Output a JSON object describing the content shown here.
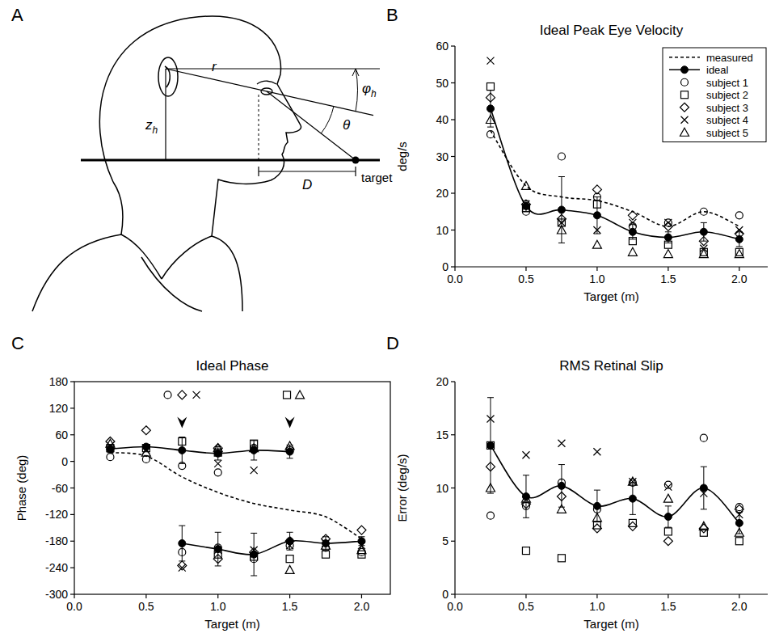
{
  "diagram": {
    "panel_label": "A",
    "height_label": {
      "text": "z",
      "subscript": "h"
    },
    "distance_label": "r",
    "elevation_label": {
      "text": "φ",
      "subscript": "h"
    },
    "angle_label": "θ",
    "target_distance_label": "D",
    "target_label": "target"
  },
  "chart_data": [
    {
      "panel_label": "B",
      "type": "line",
      "title": "Ideal Peak Eye Velocity",
      "xlabel": "Target (m)",
      "ylabel": "deg/s",
      "x": [
        0.25,
        0.5,
        0.75,
        1.0,
        1.25,
        1.5,
        1.75,
        2.0
      ],
      "xlim": [
        0,
        2.2
      ],
      "xticks": [
        {
          "value": 0,
          "label": "0.0"
        },
        {
          "value": 0.5,
          "label": "0.5"
        },
        {
          "value": 1,
          "label": "1.0"
        },
        {
          "value": 1.5,
          "label": "1.5"
        },
        {
          "value": 2,
          "label": "2.0"
        }
      ],
      "ylim": [
        0,
        60
      ],
      "yticks": [
        0,
        10,
        20,
        30,
        40,
        50,
        60
      ],
      "legend": "upper right",
      "series": [
        {
          "name": "measured",
          "type": "line",
          "line_style": "dashed",
          "color": "#000000",
          "values": [
            37,
            22,
            19,
            18,
            15,
            11,
            15,
            11
          ]
        },
        {
          "name": "ideal",
          "type": "line",
          "marker": "dot",
          "color": "#000000",
          "values": [
            43,
            16.5,
            15.5,
            14,
            9.5,
            8,
            9.5,
            7.5
          ],
          "errors": [
            5,
            1.5,
            9,
            5,
            2,
            1.5,
            2.5,
            2
          ]
        },
        {
          "name": "subject 1",
          "type": "scatter",
          "marker": "circle",
          "color": "#000000",
          "values": [
            36,
            15,
            30,
            19,
            11,
            12,
            15,
            14
          ]
        },
        {
          "name": "subject 2",
          "type": "scatter",
          "marker": "square",
          "color": "#000000",
          "values": [
            49,
            16,
            12,
            17,
            7,
            6,
            4,
            4
          ]
        },
        {
          "name": "subject 3",
          "type": "scatter",
          "marker": "diamond",
          "color": "#000000",
          "values": [
            46,
            17,
            13,
            21,
            14,
            11,
            7,
            9
          ]
        },
        {
          "name": "subject 4",
          "type": "scatter",
          "marker": "x",
          "color": "#000000",
          "values": [
            56,
            17,
            12,
            10,
            12,
            12,
            5,
            10
          ]
        },
        {
          "name": "subject 5",
          "type": "scatter",
          "marker": "triangle",
          "color": "#000000",
          "values": [
            40,
            22,
            10,
            6,
            4,
            3.5,
            3.5,
            3.5
          ]
        }
      ]
    },
    {
      "panel_label": "C",
      "type": "line",
      "title": "Ideal Phase",
      "xlabel": "Target (m)",
      "ylabel": "Phase (deg)",
      "x": [
        0.25,
        0.5,
        0.75,
        1.0,
        1.25,
        1.5,
        1.75,
        2.0
      ],
      "xlim": [
        0,
        2.2
      ],
      "xticks": [
        {
          "value": 0,
          "label": "0.0"
        },
        {
          "value": 0.5,
          "label": "0.5"
        },
        {
          "value": 1,
          "label": "1.0"
        },
        {
          "value": 1.5,
          "label": "1.5"
        },
        {
          "value": 2,
          "label": "2.0"
        }
      ],
      "ylim": [
        -300,
        180
      ],
      "yticks": [
        -300,
        -240,
        -180,
        -120,
        -60,
        0,
        60,
        120,
        180
      ],
      "arrows": [
        {
          "x": 0.75,
          "y": 75
        },
        {
          "x": 1.5,
          "y": 75
        }
      ],
      "series": [
        {
          "name": "measured",
          "type": "line",
          "line_style": "dashed",
          "color": "#000000",
          "values": [
            20,
            12,
            -35,
            -70,
            -95,
            -110,
            -125,
            -175
          ]
        },
        {
          "name": "ideal",
          "type": "line",
          "marker": "dot",
          "color": "#000000",
          "values": [
            28,
            33,
            25,
            18,
            25,
            22,
            null,
            null
          ],
          "errors": [
            8,
            5,
            30,
            15,
            22,
            15,
            null,
            null
          ]
        },
        {
          "name": "ideal",
          "type": "line",
          "marker": "dot",
          "color": "#000000",
          "values": [
            null,
            null,
            -185,
            -198,
            -210,
            -180,
            -185,
            -180
          ],
          "errors": [
            null,
            null,
            40,
            38,
            48,
            20,
            15,
            10
          ]
        },
        {
          "name": "subject 1",
          "type": "scatter",
          "marker": "circle",
          "color": "#000000",
          "x": [
            0.25,
            0.5,
            0.65,
            0.75,
            0.75,
            1.0,
            1.0,
            1.25,
            1.25,
            1.5,
            1.5,
            1.75,
            2.0
          ],
          "values": [
            10,
            5,
            150,
            -10,
            -205,
            -25,
            -195,
            30,
            -220,
            25,
            -190,
            -195,
            -205
          ]
        },
        {
          "name": "subject 2",
          "type": "scatter",
          "marker": "square",
          "color": "#000000",
          "x": [
            0.25,
            0.5,
            0.75,
            1.0,
            1.0,
            1.25,
            1.25,
            1.48,
            1.5,
            1.75,
            2.0
          ],
          "values": [
            30,
            30,
            45,
            20,
            -210,
            40,
            -215,
            150,
            -220,
            -210,
            -210
          ]
        },
        {
          "name": "subject 3",
          "type": "scatter",
          "marker": "diamond",
          "color": "#000000",
          "x": [
            0.25,
            0.5,
            0.75,
            0.75,
            1.0,
            1.0,
            1.25,
            1.5,
            1.75,
            2.0
          ],
          "values": [
            45,
            70,
            150,
            -235,
            30,
            -220,
            -205,
            -180,
            -175,
            -155
          ]
        },
        {
          "name": "subject 4",
          "type": "scatter",
          "marker": "x",
          "color": "#000000",
          "x": [
            0.25,
            0.5,
            0.75,
            0.85,
            1.0,
            1.0,
            1.25,
            1.25,
            1.5,
            1.75,
            2.0
          ],
          "values": [
            35,
            25,
            -240,
            150,
            -5,
            -200,
            -20,
            -200,
            -190,
            -185,
            -190
          ]
        },
        {
          "name": "subject 5",
          "type": "scatter",
          "marker": "triangle",
          "color": "#000000",
          "x": [
            0.25,
            0.5,
            1.0,
            1.25,
            1.5,
            1.5,
            1.57,
            1.75,
            2.0
          ],
          "values": [
            40,
            20,
            30,
            30,
            35,
            -245,
            150,
            -190,
            -200
          ]
        }
      ]
    },
    {
      "panel_label": "D",
      "type": "line",
      "title": "RMS Retinal Slip",
      "xlabel": "Target (m)",
      "ylabel": "Error (deg/s)",
      "x": [
        0.25,
        0.5,
        0.75,
        1.0,
        1.25,
        1.5,
        1.75,
        2.0
      ],
      "xlim": [
        0,
        2.2
      ],
      "xticks": [
        {
          "value": 0,
          "label": "0.0"
        },
        {
          "value": 0.5,
          "label": "0.5"
        },
        {
          "value": 1,
          "label": "1.0"
        },
        {
          "value": 1.5,
          "label": "1.5"
        },
        {
          "value": 2,
          "label": "2.0"
        }
      ],
      "ylim": [
        0,
        20
      ],
      "yticks": [
        0,
        5,
        10,
        15,
        20
      ],
      "series": [
        {
          "name": "ideal",
          "type": "line",
          "marker": "dot",
          "color": "#000000",
          "values": [
            14,
            9.2,
            10.2,
            8.3,
            9,
            7.3,
            10,
            6.7
          ],
          "errors": [
            4.5,
            2,
            2,
            1.5,
            1.5,
            1,
            2,
            1
          ]
        },
        {
          "name": "subject 1",
          "type": "scatter",
          "marker": "circle",
          "color": "#000000",
          "values": [
            7.4,
            8.3,
            10.5,
            8,
            10.5,
            10.3,
            14.7,
            8.2
          ]
        },
        {
          "name": "subject 2",
          "type": "scatter",
          "marker": "square",
          "color": "#000000",
          "values": [
            14,
            4.1,
            3.4,
            6.5,
            6.7,
            5.9,
            5.8,
            5
          ]
        },
        {
          "name": "subject 3",
          "type": "scatter",
          "marker": "diamond",
          "color": "#000000",
          "values": [
            12,
            8.5,
            9.2,
            6.2,
            6.4,
            5,
            6.2,
            8
          ]
        },
        {
          "name": "subject 4",
          "type": "scatter",
          "marker": "x",
          "color": "#000000",
          "values": [
            16.5,
            13.1,
            14.2,
            13.4,
            10.6,
            10.1,
            9.5,
            7.5
          ]
        },
        {
          "name": "subject 5",
          "type": "scatter",
          "marker": "triangle",
          "color": "#000000",
          "values": [
            10,
            9,
            8,
            7.2,
            10.6,
            9,
            6.4,
            5.8
          ]
        }
      ]
    }
  ]
}
